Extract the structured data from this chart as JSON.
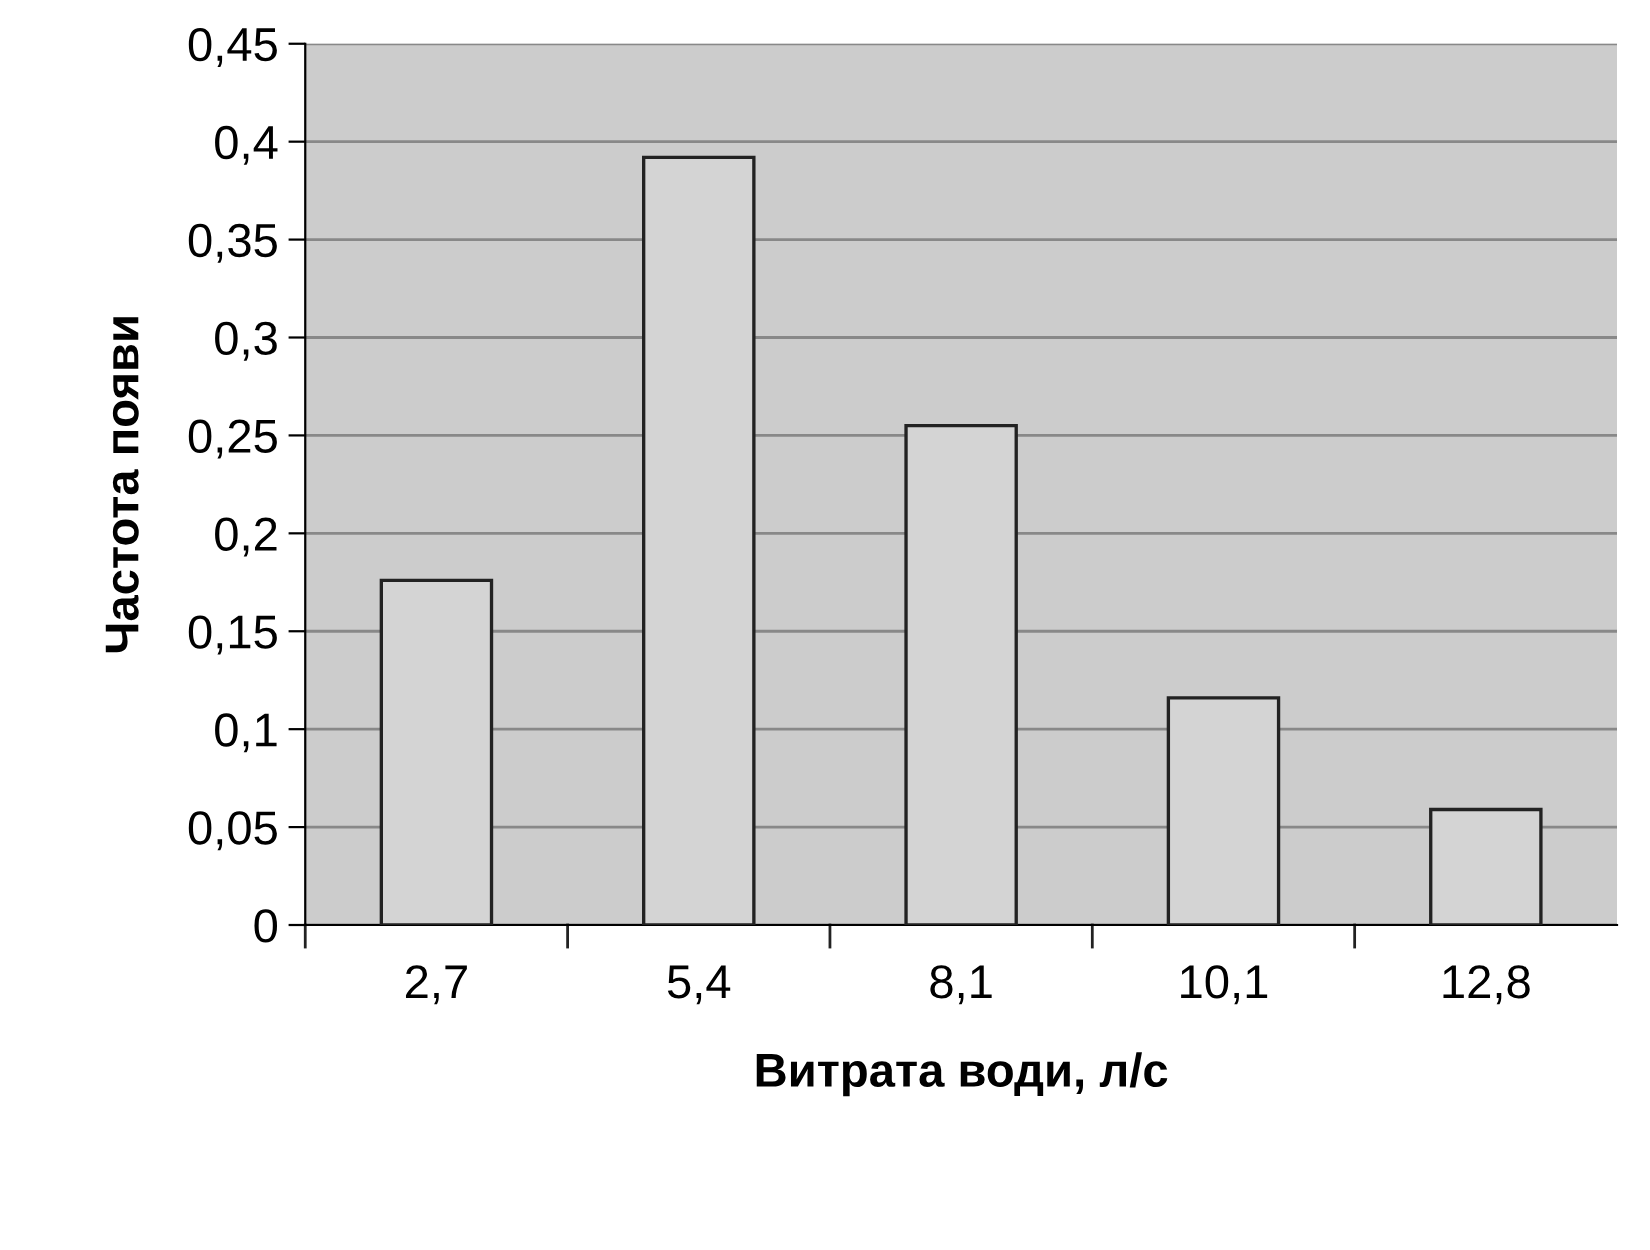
{
  "chart_data": {
    "type": "bar",
    "xlabel": "Витрата води, л/с",
    "ylabel": "Частота появи",
    "categories": [
      "2,7",
      "5,4",
      "8,1",
      "10,1",
      "12,8"
    ],
    "values": [
      0.176,
      0.392,
      0.255,
      0.116,
      0.059
    ],
    "color": "#d4d4d4",
    "ylim": [
      0,
      0.45
    ],
    "yticks": [
      0,
      {
        "value": 0.05,
        "label": "0,05"
      },
      {
        "value": 0.1,
        "label": "0,1"
      },
      {
        "value": 0.15,
        "label": "0,15"
      },
      {
        "value": 0.2,
        "label": "0,2"
      },
      {
        "value": 0.25,
        "label": "0,25"
      },
      {
        "value": 0.3,
        "label": "0,3"
      },
      {
        "value": 0.35,
        "label": "0,35"
      },
      {
        "value": 0.4,
        "label": "0,4"
      },
      {
        "value": 0.45,
        "label": "0,45"
      }
    ],
    "grid": "y"
  }
}
